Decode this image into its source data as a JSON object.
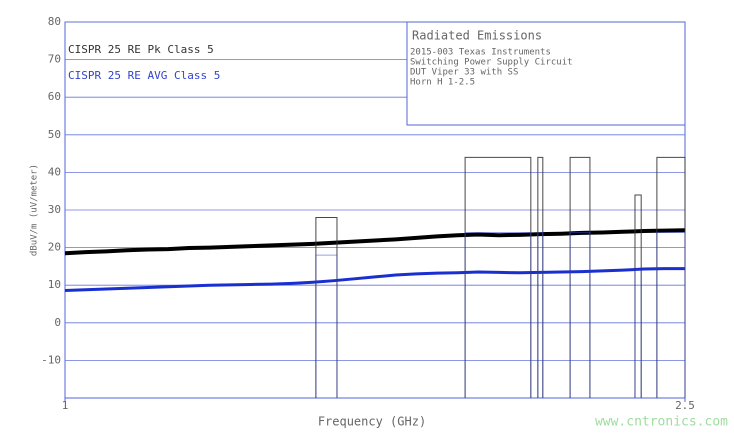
{
  "chart_data": {
    "type": "emissions",
    "xlabel": "Frequency (GHz)",
    "ylabel": "dBuV/m (uV/meter)",
    "info_title": "Radiated Emissions",
    "info_lines": [
      "2015-003 Texas Instruments",
      "Switching Power Supply Circuit",
      "DUT Viper 33 with SS",
      "Horn H 1-2.5"
    ],
    "xlim": [
      1,
      2.5
    ],
    "xticks": [
      1,
      2.5
    ],
    "ylim": [
      -20,
      80
    ],
    "yticks": [
      -10,
      0,
      10,
      20,
      30,
      40,
      50,
      60,
      70,
      80
    ],
    "grid": true,
    "limits": [
      {
        "name": "CISPR 25 RE Pk Class 5",
        "color": "#333333",
        "bands": [
          [
            1.607,
            1.658,
            28
          ],
          [
            1.968,
            2.127,
            44
          ],
          [
            2.144,
            2.156,
            44
          ],
          [
            2.222,
            2.27,
            44
          ],
          [
            2.379,
            2.394,
            34
          ],
          [
            2.432,
            2.5,
            44
          ]
        ]
      },
      {
        "name": "CISPR 25 RE AVG Class 5",
        "color": "#3344cc",
        "bands": [
          [
            1.607,
            1.658,
            18
          ],
          [
            1.968,
            2.127,
            24
          ],
          [
            2.144,
            2.156,
            24
          ],
          [
            2.222,
            2.27,
            24
          ],
          [
            2.379,
            2.394,
            14
          ],
          [
            2.432,
            2.5,
            24
          ]
        ]
      }
    ],
    "x": [
      1.0,
      1.05,
      1.1,
      1.15,
      1.2,
      1.25,
      1.3,
      1.35,
      1.4,
      1.45,
      1.5,
      1.55,
      1.6,
      1.65,
      1.7,
      1.75,
      1.8,
      1.85,
      1.9,
      1.95,
      2.0,
      2.05,
      2.1,
      2.15,
      2.2,
      2.25,
      2.3,
      2.35,
      2.4,
      2.45,
      2.5
    ],
    "series": [
      {
        "color": "#000000",
        "values": [
          18.5,
          18.8,
          19.0,
          19.3,
          19.5,
          19.6,
          19.9,
          20.0,
          20.2,
          20.4,
          20.6,
          20.8,
          21.0,
          21.3,
          21.6,
          21.9,
          22.2,
          22.6,
          23.0,
          23.3,
          23.5,
          23.3,
          23.4,
          23.6,
          23.7,
          23.9,
          24.0,
          24.2,
          24.4,
          24.5,
          24.6
        ]
      },
      {
        "color": "#1a2fd0",
        "values": [
          8.6,
          8.8,
          9.0,
          9.2,
          9.4,
          9.6,
          9.8,
          10.0,
          10.1,
          10.2,
          10.3,
          10.5,
          10.8,
          11.2,
          11.7,
          12.2,
          12.7,
          13.0,
          13.2,
          13.3,
          13.5,
          13.4,
          13.3,
          13.4,
          13.5,
          13.6,
          13.8,
          14.0,
          14.3,
          14.4,
          14.4
        ]
      }
    ],
    "watermark": "www.cntronics.com"
  }
}
